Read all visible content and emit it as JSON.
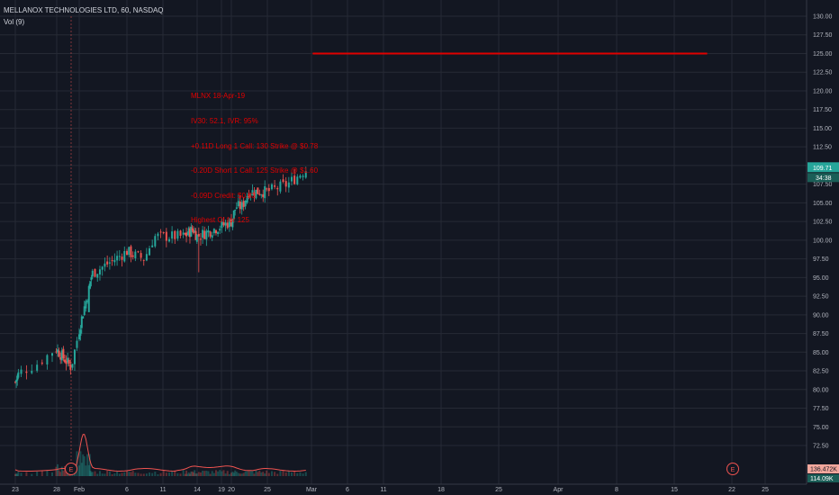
{
  "header": {
    "symbol_line": "MELLANOX TECHNOLOGIES LTD, 60, NASDAQ",
    "indicator": "Vol (9)"
  },
  "annotation": {
    "lines": [
      "MLNX 18-Apr-19",
      "IV30: 52.1, IVR: 95%",
      "+0.11D Long 1 Call: 130 Strike @ $0.78",
      "-0.20D Short 1 Call: 125 Strike @ $1.60",
      "-0.09D Credit: $0.83",
      "Highest OI for 125"
    ],
    "color": "#e00000"
  },
  "price_labels": {
    "last": "109.71",
    "countdown": "34:38",
    "vol_top": "136.472K",
    "vol_bottom": "114.09K"
  },
  "earnings_marker": "E",
  "colors": {
    "background": "#131722",
    "grid": "#262a35",
    "up": "#26a69a",
    "down": "#ef5350",
    "volume_ma": "#ef5350",
    "hline": "#e00000",
    "axis_text": "#b2b5be"
  },
  "chart_data": {
    "type": "candlestick",
    "title": "MELLANOX TECHNOLOGIES LTD, 60, NASDAQ",
    "y_ticks": [
      "130.00",
      "127.50",
      "125.00",
      "122.50",
      "120.00",
      "117.50",
      "115.00",
      "112.50",
      "110.00",
      "107.50",
      "105.00",
      "102.50",
      "100.00",
      "97.50",
      "95.00",
      "92.50",
      "90.00",
      "87.50",
      "85.00",
      "82.50",
      "80.00",
      "77.50",
      "75.00",
      "72.50"
    ],
    "x_ticks": [
      "23",
      "28",
      "Feb",
      "6",
      "11",
      "14",
      "19",
      "20",
      "25",
      "Mar",
      "6",
      "11",
      "18",
      "25",
      "Apr",
      "8",
      "15",
      "22",
      "25"
    ],
    "ylim": [
      70.0,
      131.0
    ],
    "horizontal_line": {
      "value": 125.0,
      "from": "Mar 3",
      "to": "Apr 19"
    },
    "close_path": [
      {
        "t": "Jan 22",
        "close": 81.0
      },
      {
        "t": "Jan 24",
        "close": 83.5
      },
      {
        "t": "Jan 25",
        "close": 85.5
      },
      {
        "t": "Jan 28",
        "close": 83.0
      },
      {
        "t": "Jan 29",
        "close": 88.0
      },
      {
        "t": "Jan 31",
        "close": 93.5
      },
      {
        "t": "Feb 1",
        "close": 95.5
      },
      {
        "t": "Feb 5",
        "close": 98.5
      },
      {
        "t": "Feb 7",
        "close": 97.5
      },
      {
        "t": "Feb 8",
        "close": 100.5
      },
      {
        "t": "Feb 11",
        "close": 100.5
      },
      {
        "t": "Feb 13",
        "close": 101.5
      },
      {
        "t": "Feb 14",
        "close": 100.5
      },
      {
        "t": "Feb 19",
        "close": 102.5
      },
      {
        "t": "Feb 20",
        "close": 104.5
      },
      {
        "t": "Feb 21",
        "close": 104.5
      },
      {
        "t": "Feb 22",
        "close": 106.5
      },
      {
        "t": "Feb 25",
        "close": 106.5
      },
      {
        "t": "Feb 27",
        "close": 107.5
      },
      {
        "t": "Mar 1",
        "close": 109.71
      }
    ],
    "volume_ma_peak": 136472,
    "last_price": 109.71
  }
}
